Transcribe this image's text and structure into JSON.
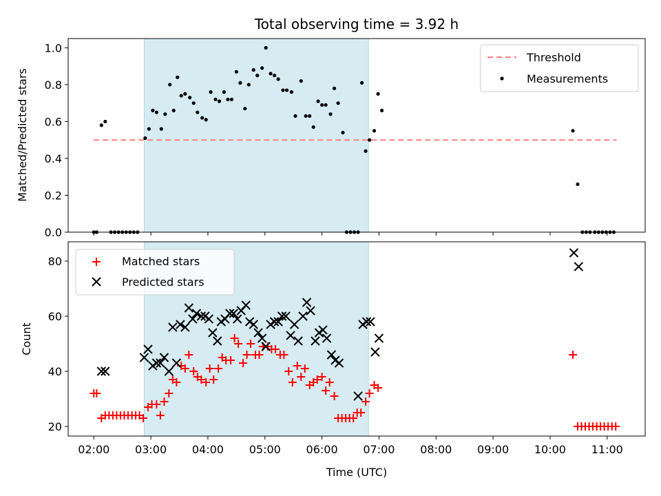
{
  "chart_data": [
    {
      "type": "scatter",
      "title": "Total observing time = 3.92 h",
      "xlabel": "",
      "ylabel": "Matched/Predicted stars",
      "x_unit": "hours UTC",
      "xlim": [
        "01:33",
        "11:40"
      ],
      "ylim": [
        0,
        1.05
      ],
      "yticks": [
        0.0,
        0.2,
        0.4,
        0.6,
        0.8,
        1.0
      ],
      "ytick_labels": [
        "0.0",
        "0.2",
        "0.4",
        "0.6",
        "0.8",
        "1.0"
      ],
      "highlight_span": {
        "start": "02:53",
        "end": "06:49",
        "color": "#add8e6"
      },
      "grid": false,
      "legend_position": "top-right",
      "legend": [
        {
          "label": "Threshold",
          "marker": "dashed-line",
          "color": "#ff7f7f"
        },
        {
          "label": "Measurements",
          "marker": "dot",
          "color": "#000000"
        }
      ],
      "threshold": {
        "value": 0.5,
        "x_start": "02:00",
        "x_end": "11:10"
      },
      "series": [
        {
          "name": "Measurements",
          "marker": "dot",
          "color": "#000000",
          "points": [
            [
              "02:00",
              0
            ],
            [
              "02:03",
              0
            ],
            [
              "02:08",
              0.58
            ],
            [
              "02:12",
              0.6
            ],
            [
              "02:18",
              0
            ],
            [
              "02:22",
              0
            ],
            [
              "02:26",
              0
            ],
            [
              "02:30",
              0
            ],
            [
              "02:34",
              0
            ],
            [
              "02:38",
              0
            ],
            [
              "02:42",
              0
            ],
            [
              "02:46",
              0
            ],
            [
              "02:54",
              0.51
            ],
            [
              "02:58",
              0.56
            ],
            [
              "03:02",
              0.66
            ],
            [
              "03:06",
              0.65
            ],
            [
              "03:11",
              0.56
            ],
            [
              "03:15",
              0.64
            ],
            [
              "03:20",
              0.8
            ],
            [
              "03:24",
              0.66
            ],
            [
              "03:28",
              0.84
            ],
            [
              "03:32",
              0.74
            ],
            [
              "03:36",
              0.75
            ],
            [
              "03:41",
              0.73
            ],
            [
              "03:45",
              0.7
            ],
            [
              "03:49",
              0.65
            ],
            [
              "03:54",
              0.62
            ],
            [
              "03:58",
              0.61
            ],
            [
              "04:03",
              0.76
            ],
            [
              "04:08",
              0.72
            ],
            [
              "04:12",
              0.71
            ],
            [
              "04:17",
              0.76
            ],
            [
              "04:21",
              0.72
            ],
            [
              "04:25",
              0.72
            ],
            [
              "04:30",
              0.87
            ],
            [
              "04:34",
              0.81
            ],
            [
              "04:39",
              0.67
            ],
            [
              "04:43",
              0.8
            ],
            [
              "04:48",
              0.88
            ],
            [
              "04:52",
              0.85
            ],
            [
              "04:57",
              0.89
            ],
            [
              "05:01",
              1.0
            ],
            [
              "05:06",
              0.86
            ],
            [
              "05:10",
              0.85
            ],
            [
              "05:14",
              0.83
            ],
            [
              "05:19",
              0.77
            ],
            [
              "05:23",
              0.77
            ],
            [
              "05:28",
              0.76
            ],
            [
              "05:32",
              0.63
            ],
            [
              "05:38",
              0.82
            ],
            [
              "05:43",
              0.63
            ],
            [
              "05:47",
              0.63
            ],
            [
              "05:51",
              0.57
            ],
            [
              "05:56",
              0.71
            ],
            [
              "06:00",
              0.69
            ],
            [
              "06:04",
              0.69
            ],
            [
              "06:09",
              0.64
            ],
            [
              "06:13",
              0.78
            ],
            [
              "06:17",
              0.7
            ],
            [
              "06:22",
              0.54
            ],
            [
              "06:26",
              0
            ],
            [
              "06:30",
              0
            ],
            [
              "06:34",
              0
            ],
            [
              "06:38",
              0
            ],
            [
              "06:42",
              0.81
            ],
            [
              "06:46",
              0.44
            ],
            [
              "06:50",
              0.5
            ],
            [
              "06:55",
              0.55
            ],
            [
              "06:59",
              0.75
            ],
            [
              "07:03",
              0.66
            ],
            [
              "10:24",
              0.55
            ],
            [
              "10:29",
              0.26
            ],
            [
              "10:34",
              0
            ],
            [
              "10:38",
              0
            ],
            [
              "10:42",
              0
            ],
            [
              "10:47",
              0
            ],
            [
              "10:51",
              0
            ],
            [
              "10:55",
              0
            ],
            [
              "10:59",
              0
            ],
            [
              "11:03",
              0
            ],
            [
              "11:07",
              0
            ]
          ]
        }
      ]
    },
    {
      "type": "scatter",
      "title": "",
      "xlabel": "Time (UTC)",
      "ylabel": "Count",
      "x_unit": "hours UTC",
      "xlim": [
        "01:33",
        "11:40"
      ],
      "ylim": [
        16.5,
        87
      ],
      "xticks": [
        "02:00",
        "03:00",
        "04:00",
        "05:00",
        "06:00",
        "07:00",
        "08:00",
        "09:00",
        "10:00",
        "11:00"
      ],
      "xtick_labels": [
        "02:00",
        "03:00",
        "04:00",
        "05:00",
        "06:00",
        "07:00",
        "08:00",
        "09:00",
        "10:00",
        "11:00"
      ],
      "yticks": [
        20,
        40,
        60,
        80
      ],
      "ytick_labels": [
        "20",
        "40",
        "60",
        "80"
      ],
      "highlight_span": {
        "start": "02:53",
        "end": "06:49",
        "color": "#add8e6"
      },
      "grid": false,
      "legend_position": "top-left",
      "legend": [
        {
          "label": "Matched stars",
          "marker": "plus",
          "color": "#ff0000"
        },
        {
          "label": "Predicted stars",
          "marker": "x",
          "color": "#000000"
        }
      ],
      "series": [
        {
          "name": "Matched stars",
          "marker": "plus",
          "color": "#ff0000",
          "points": [
            [
              "02:00",
              32
            ],
            [
              "02:03",
              32
            ],
            [
              "02:08",
              23
            ],
            [
              "02:12",
              24
            ],
            [
              "02:16",
              24
            ],
            [
              "02:20",
              24
            ],
            [
              "02:24",
              24
            ],
            [
              "02:28",
              24
            ],
            [
              "02:32",
              24
            ],
            [
              "02:36",
              24
            ],
            [
              "02:40",
              24
            ],
            [
              "02:44",
              24
            ],
            [
              "02:48",
              24
            ],
            [
              "02:52",
              23
            ],
            [
              "02:57",
              27
            ],
            [
              "03:01",
              28
            ],
            [
              "03:06",
              28
            ],
            [
              "03:10",
              24
            ],
            [
              "03:14",
              29
            ],
            [
              "03:19",
              32
            ],
            [
              "03:23",
              37
            ],
            [
              "03:27",
              36
            ],
            [
              "03:32",
              42
            ],
            [
              "03:36",
              41
            ],
            [
              "03:40",
              46
            ],
            [
              "03:45",
              40
            ],
            [
              "03:49",
              38
            ],
            [
              "03:53",
              37
            ],
            [
              "03:58",
              36
            ],
            [
              "04:02",
              41
            ],
            [
              "04:06",
              37
            ],
            [
              "04:11",
              41
            ],
            [
              "04:15",
              45
            ],
            [
              "04:19",
              44
            ],
            [
              "04:24",
              44
            ],
            [
              "04:28",
              52
            ],
            [
              "04:32",
              50
            ],
            [
              "04:37",
              43
            ],
            [
              "04:41",
              46
            ],
            [
              "04:45",
              50
            ],
            [
              "04:50",
              46
            ],
            [
              "04:54",
              46
            ],
            [
              "04:58",
              49
            ],
            [
              "05:03",
              49
            ],
            [
              "05:07",
              48
            ],
            [
              "05:11",
              48
            ],
            [
              "05:16",
              46
            ],
            [
              "05:20",
              46
            ],
            [
              "05:25",
              40
            ],
            [
              "05:29",
              36
            ],
            [
              "05:34",
              42
            ],
            [
              "05:38",
              38
            ],
            [
              "05:42",
              41
            ],
            [
              "05:47",
              35
            ],
            [
              "05:51",
              36
            ],
            [
              "05:55",
              37
            ],
            [
              "06:00",
              38
            ],
            [
              "06:04",
              33
            ],
            [
              "06:08",
              36
            ],
            [
              "06:13",
              31
            ],
            [
              "06:17",
              23
            ],
            [
              "06:21",
              23
            ],
            [
              "06:25",
              23
            ],
            [
              "06:29",
              23
            ],
            [
              "06:33",
              23
            ],
            [
              "06:37",
              25
            ],
            [
              "06:41",
              25
            ],
            [
              "06:46",
              29
            ],
            [
              "06:50",
              32
            ],
            [
              "06:55",
              35
            ],
            [
              "06:59",
              34
            ],
            [
              "10:24",
              46
            ],
            [
              "10:29",
              20
            ],
            [
              "10:33",
              20
            ],
            [
              "10:37",
              20
            ],
            [
              "10:41",
              20
            ],
            [
              "10:45",
              20
            ],
            [
              "10:49",
              20
            ],
            [
              "10:53",
              20
            ],
            [
              "10:57",
              20
            ],
            [
              "11:01",
              20
            ],
            [
              "11:05",
              20
            ],
            [
              "11:09",
              20
            ]
          ]
        },
        {
          "name": "Predicted stars",
          "marker": "x",
          "color": "#000000",
          "points": [
            [
              "02:08",
              40
            ],
            [
              "02:12",
              40
            ],
            [
              "02:53",
              45
            ],
            [
              "02:57",
              48
            ],
            [
              "03:02",
              42
            ],
            [
              "03:06",
              43
            ],
            [
              "03:10",
              43
            ],
            [
              "03:14",
              45
            ],
            [
              "03:19",
              40
            ],
            [
              "03:23",
              56
            ],
            [
              "03:27",
              43
            ],
            [
              "03:31",
              57
            ],
            [
              "03:36",
              56
            ],
            [
              "03:40",
              63
            ],
            [
              "03:44",
              59
            ],
            [
              "03:48",
              61
            ],
            [
              "03:53",
              60
            ],
            [
              "03:57",
              60
            ],
            [
              "04:01",
              59
            ],
            [
              "04:05",
              54
            ],
            [
              "04:10",
              51
            ],
            [
              "04:14",
              58
            ],
            [
              "04:18",
              59
            ],
            [
              "04:23",
              61
            ],
            [
              "04:27",
              61
            ],
            [
              "04:31",
              59
            ],
            [
              "04:35",
              62
            ],
            [
              "04:40",
              64
            ],
            [
              "04:44",
              58
            ],
            [
              "04:48",
              57
            ],
            [
              "04:53",
              54
            ],
            [
              "04:57",
              52
            ],
            [
              "05:01",
              49
            ],
            [
              "05:06",
              57
            ],
            [
              "05:10",
              58
            ],
            [
              "05:14",
              58
            ],
            [
              "05:18",
              60
            ],
            [
              "05:22",
              60
            ],
            [
              "05:27",
              53
            ],
            [
              "05:31",
              57
            ],
            [
              "05:35",
              51
            ],
            [
              "05:40",
              60
            ],
            [
              "05:44",
              65
            ],
            [
              "05:48",
              62
            ],
            [
              "05:53",
              51
            ],
            [
              "05:57",
              54
            ],
            [
              "06:01",
              55
            ],
            [
              "06:05",
              52
            ],
            [
              "06:10",
              46
            ],
            [
              "06:14",
              44
            ],
            [
              "06:18",
              43
            ],
            [
              "06:38",
              31
            ],
            [
              "06:43",
              57
            ],
            [
              "06:47",
              58
            ],
            [
              "06:51",
              58
            ],
            [
              "06:56",
              47
            ],
            [
              "07:00",
              52
            ],
            [
              "10:25",
              83
            ],
            [
              "10:30",
              78
            ]
          ]
        }
      ]
    }
  ]
}
